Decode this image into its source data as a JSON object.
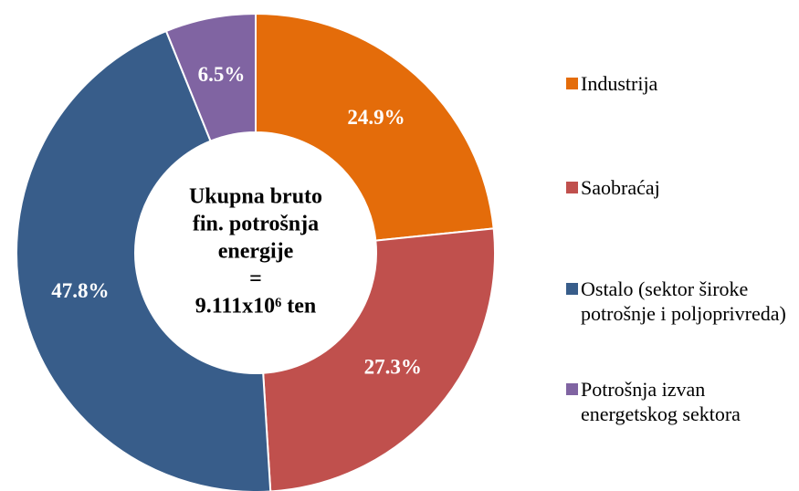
{
  "chart_data": {
    "type": "donut",
    "categories": [
      "Industrija",
      "Saobraćaj",
      "Ostalo (sektor široke potrošnje i poljoprivreda)",
      "Potrošnja izvan energetskog sektora"
    ],
    "values": [
      24.9,
      27.3,
      47.8,
      6.5
    ],
    "value_labels": [
      "24.9%",
      "27.3%",
      "47.8%",
      "6.5%"
    ],
    "colors": [
      "#e46c0a",
      "#c0504d",
      "#385d8a",
      "#8064a2"
    ],
    "center_text": [
      "Ukupna bruto",
      "fin. potrošnja",
      "energije",
      "=",
      "9.111x10⁶ ten"
    ],
    "legend": "right"
  }
}
